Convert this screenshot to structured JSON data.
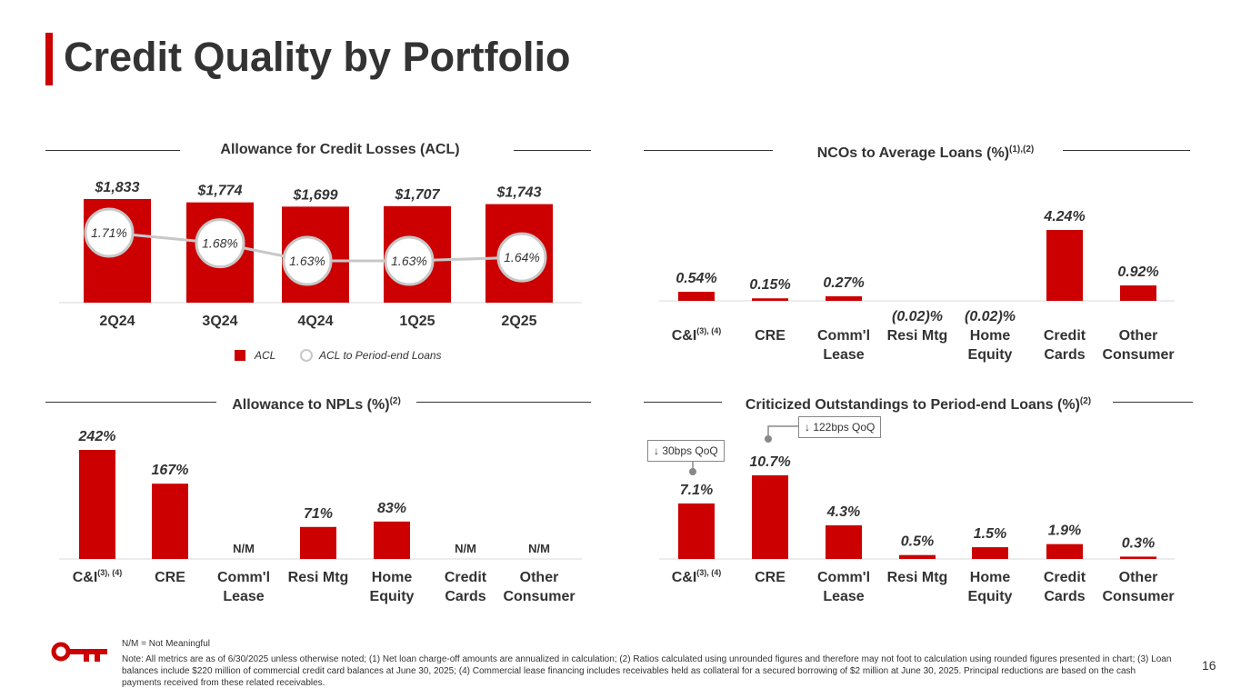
{
  "title": "Credit Quality by Portfolio",
  "colors": {
    "accent": "#cc0000",
    "line": "#c8c8c8",
    "text": "#333333"
  },
  "sections": {
    "acl": {
      "label": "Allowance for Credit Losses (ACL)"
    },
    "nco": {
      "label": "NCOs to Average Loans (%)",
      "sup": "(1),(2)"
    },
    "npl": {
      "label": "Allowance to NPLs (%)",
      "sup": "(2)"
    },
    "crit": {
      "label": "Criticized Outstandings to Period-end Loans (%)",
      "sup": "(2)"
    }
  },
  "legend": {
    "acl": "ACL",
    "ratio": "ACL to Period-end Loans"
  },
  "callouts": {
    "ci": "↓ 30bps QoQ",
    "cre": "↓ 122bps QoQ"
  },
  "chart_data": [
    {
      "id": "acl",
      "type": "bar",
      "title": "Allowance for Credit Losses (ACL)",
      "categories": [
        "2Q24",
        "3Q24",
        "4Q24",
        "1Q25",
        "2Q25"
      ],
      "series": [
        {
          "name": "ACL",
          "values": [
            1833,
            1774,
            1699,
            1707,
            1743
          ],
          "labels": [
            "$1,833",
            "$1,774",
            "$1,699",
            "$1,707",
            "$1,743"
          ]
        },
        {
          "name": "ACL to Period-end Loans",
          "type": "line",
          "values": [
            1.71,
            1.68,
            1.63,
            1.63,
            1.64
          ],
          "labels": [
            "1.71%",
            "1.68%",
            "1.63%",
            "1.63%",
            "1.64%"
          ]
        }
      ]
    },
    {
      "id": "nco",
      "type": "bar",
      "title": "NCOs to Average Loans (%)",
      "categories": [
        "C&I",
        "CRE",
        "Comm'l Lease",
        "Resi Mtg",
        "Home Equity",
        "Credit Cards",
        "Other Consumer"
      ],
      "category_lines": [
        [
          "C&I"
        ],
        [
          "CRE"
        ],
        [
          "Comm'l",
          "Lease"
        ],
        [
          "Resi Mtg"
        ],
        [
          "Home",
          "Equity"
        ],
        [
          "Credit",
          "Cards"
        ],
        [
          "Other",
          "Consumer"
        ]
      ],
      "category_sups": [
        "(3), (4)",
        "",
        "",
        "",
        "",
        "",
        ""
      ],
      "values": [
        0.54,
        0.15,
        0.27,
        -0.02,
        -0.02,
        4.24,
        0.92
      ],
      "labels": [
        "0.54%",
        "0.15%",
        "0.27%",
        "(0.02)%",
        "(0.02)%",
        "4.24%",
        "0.92%"
      ]
    },
    {
      "id": "npl",
      "type": "bar",
      "title": "Allowance to NPLs (%)",
      "categories": [
        "C&I",
        "CRE",
        "Comm'l Lease",
        "Resi Mtg",
        "Home Equity",
        "Credit Cards",
        "Other Consumer"
      ],
      "category_lines": [
        [
          "C&I"
        ],
        [
          "CRE"
        ],
        [
          "Comm'l",
          "Lease"
        ],
        [
          "Resi Mtg"
        ],
        [
          "Home",
          "Equity"
        ],
        [
          "Credit",
          "Cards"
        ],
        [
          "Other",
          "Consumer"
        ]
      ],
      "category_sups": [
        "(3), (4)",
        "",
        "",
        "",
        "",
        "",
        ""
      ],
      "values": [
        242,
        167,
        null,
        71,
        83,
        null,
        null
      ],
      "labels": [
        "242%",
        "167%",
        "N/M",
        "71%",
        "83%",
        "N/M",
        "N/M"
      ]
    },
    {
      "id": "crit",
      "type": "bar",
      "title": "Criticized Outstandings to Period-end Loans (%)",
      "categories": [
        "C&I",
        "CRE",
        "Comm'l Lease",
        "Resi Mtg",
        "Home Equity",
        "Credit Cards",
        "Other Consumer"
      ],
      "category_lines": [
        [
          "C&I"
        ],
        [
          "CRE"
        ],
        [
          "Comm'l",
          "Lease"
        ],
        [
          "Resi Mtg"
        ],
        [
          "Home",
          "Equity"
        ],
        [
          "Credit",
          "Cards"
        ],
        [
          "Other",
          "Consumer"
        ]
      ],
      "category_sups": [
        "(3), (4)",
        "",
        "",
        "",
        "",
        "",
        ""
      ],
      "values": [
        7.1,
        10.7,
        4.3,
        0.5,
        1.5,
        1.9,
        0.3
      ],
      "labels": [
        "7.1%",
        "10.7%",
        "4.3%",
        "0.5%",
        "1.5%",
        "1.9%",
        "0.3%"
      ]
    }
  ],
  "footnotes": {
    "nm": "N/M = Not Meaningful",
    "note": "Note: All metrics are as of 6/30/2025 unless otherwise noted; (1) Net loan charge-off amounts are annualized in calculation; (2) Ratios calculated using unrounded figures and therefore may not foot to calculation using rounded figures presented in chart; (3) Loan balances include $220 million of commercial credit card balances at June 30, 2025; (4) Commercial lease financing includes receivables held as collateral for a secured borrowing of $2 million at June 30, 2025. Principal reductions are based on the cash payments received from these related receivables."
  },
  "page_number": "16"
}
